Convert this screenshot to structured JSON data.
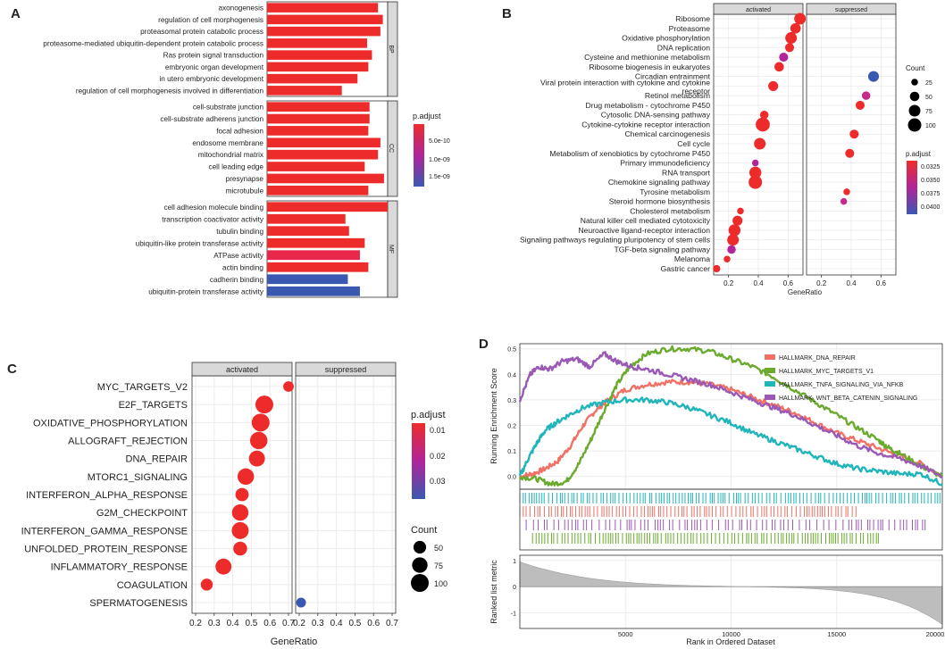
{
  "chart_data": [
    {
      "panel": "A",
      "type": "bar",
      "orientation": "horizontal",
      "xlabel": "",
      "ylabel": "",
      "groups": [
        {
          "name": "BP",
          "terms": [
            {
              "term": "axonogenesis",
              "value": 0.92,
              "color": "#ee2b2b"
            },
            {
              "term": "regulation of cell morphogenesis",
              "value": 0.96,
              "color": "#ee2b2b"
            },
            {
              "term": "proteasomal protein catabolic process",
              "value": 0.94,
              "color": "#ee2b2b"
            },
            {
              "term": "proteasome-mediated ubiquitin-dependent protein catabolic process",
              "value": 0.83,
              "color": "#ee2b2b"
            },
            {
              "term": "Ras protein signal transduction",
              "value": 0.87,
              "color": "#ee2b2b"
            },
            {
              "term": "embryonic organ development",
              "value": 0.84,
              "color": "#ee2b2b"
            },
            {
              "term": "in utero embryonic development",
              "value": 0.75,
              "color": "#ee2b2b"
            },
            {
              "term": "regulation of cell morphogenesis involved in differentiation",
              "value": 0.62,
              "color": "#ee2b2b"
            }
          ]
        },
        {
          "name": "CC",
          "terms": [
            {
              "term": "cell-substrate junction",
              "value": 0.85,
              "color": "#ee2b2b"
            },
            {
              "term": "cell-substrate adherens junction",
              "value": 0.85,
              "color": "#ee2b2b"
            },
            {
              "term": "focal adhesion",
              "value": 0.84,
              "color": "#ee2b2b"
            },
            {
              "term": "endosome membrane",
              "value": 0.94,
              "color": "#ee2b2b"
            },
            {
              "term": "mitochondrial matrix",
              "value": 0.92,
              "color": "#ee2b2b"
            },
            {
              "term": "cell leading edge",
              "value": 0.81,
              "color": "#ee2b2b"
            },
            {
              "term": "presynapse",
              "value": 0.97,
              "color": "#ee2b2b"
            },
            {
              "term": "microtubule",
              "value": 0.84,
              "color": "#ee2b2b"
            }
          ]
        },
        {
          "name": "MF",
          "terms": [
            {
              "term": "cell adhesion molecule binding",
              "value": 1.0,
              "color": "#ee2b2b"
            },
            {
              "term": "transcription coactivator activity",
              "value": 0.65,
              "color": "#ee2b2b"
            },
            {
              "term": "tubulin binding",
              "value": 0.68,
              "color": "#ee2b2b"
            },
            {
              "term": "ubiquitin-like protein transferase activity",
              "value": 0.81,
              "color": "#ee2b2b"
            },
            {
              "term": "ATPase activity",
              "value": 0.77,
              "color": "#e8274a"
            },
            {
              "term": "actin binding",
              "value": 0.84,
              "color": "#ee2b2b"
            },
            {
              "term": "cadherin binding",
              "value": 0.67,
              "color": "#3b58b0"
            },
            {
              "term": "ubiquitin-protein transferase activity",
              "value": 0.77,
              "color": "#3b58b0"
            }
          ]
        }
      ],
      "legend": {
        "title": "p.adjust",
        "labels": [
          "5.0e-10",
          "1.0e-09",
          "1.5e-09"
        ]
      }
    },
    {
      "panel": "B",
      "type": "scatter",
      "facets": [
        "activated",
        "suppressed"
      ],
      "xlabel": "GeneRatio",
      "xlim": [
        0.1,
        0.7
      ],
      "xticks": [
        0.2,
        0.4,
        0.6
      ],
      "categories": [
        "Ribosome",
        "Proteasome",
        "Oxidative phosphorylation",
        "DNA replication",
        "Cysteine and methionine metabolism",
        "Ribosome biogenesis in eukaryotes",
        "Circadian entrainment",
        "Viral protein interaction with cytokine and cytokine receptor",
        "Retinol metabolism",
        "Drug metabolism - cytochrome P450",
        "Cytosolic DNA-sensing pathway",
        "Cytokine-cytokine receptor interaction",
        "Chemical carcinogenesis",
        "Cell cycle",
        "Metabolism of xenobiotics by cytochrome P450",
        "Primary immunodeficiency",
        "RNA transport",
        "Chemokine signaling pathway",
        "Tyrosine metabolism",
        "Steroid hormone biosynthesis",
        "Cholesterol metabolism",
        "Natural killer cell mediated cytotoxicity",
        "Neuroactive ligand-receptor interaction",
        "Signaling pathways regulating pluripotency of stem cells",
        "TGF-beta signaling pathway",
        "Melanoma",
        "Gastric cancer"
      ],
      "points": [
        {
          "facet": "activated",
          "term": "Ribosome",
          "x": 0.68,
          "count": 75,
          "color": "#ee2b2b"
        },
        {
          "facet": "activated",
          "term": "Proteasome",
          "x": 0.65,
          "count": 60,
          "color": "#ee2b2b"
        },
        {
          "facet": "activated",
          "term": "Oxidative phosphorylation",
          "x": 0.62,
          "count": 75,
          "color": "#ee2b2b"
        },
        {
          "facet": "activated",
          "term": "DNA replication",
          "x": 0.61,
          "count": 45,
          "color": "#ee2b2b"
        },
        {
          "facet": "activated",
          "term": "Cysteine and methionine metabolism",
          "x": 0.57,
          "count": 45,
          "color": "#b0269a"
        },
        {
          "facet": "activated",
          "term": "Ribosome biogenesis in eukaryotes",
          "x": 0.54,
          "count": 50,
          "color": "#ee2b2b"
        },
        {
          "facet": "suppressed",
          "term": "Circadian entrainment",
          "x": 0.55,
          "count": 65,
          "color": "#3b58b0"
        },
        {
          "facet": "activated",
          "term": "Viral protein interaction with cytokine and cytokine receptor",
          "x": 0.5,
          "count": 55,
          "color": "#ee2b2b"
        },
        {
          "facet": "suppressed",
          "term": "Retinol metabolism",
          "x": 0.5,
          "count": 40,
          "color": "#c62a8c"
        },
        {
          "facet": "suppressed",
          "term": "Drug metabolism - cytochrome P450",
          "x": 0.46,
          "count": 45,
          "color": "#ee2b2b"
        },
        {
          "facet": "activated",
          "term": "Cytosolic DNA-sensing pathway",
          "x": 0.44,
          "count": 40,
          "color": "#ee2b2b"
        },
        {
          "facet": "activated",
          "term": "Cytokine-cytokine receptor interaction",
          "x": 0.43,
          "count": 110,
          "color": "#ee2b2b"
        },
        {
          "facet": "suppressed",
          "term": "Chemical carcinogenesis",
          "x": 0.42,
          "count": 45,
          "color": "#ee2b2b"
        },
        {
          "facet": "activated",
          "term": "Cell cycle",
          "x": 0.41,
          "count": 75,
          "color": "#ee2b2b"
        },
        {
          "facet": "suppressed",
          "term": "Metabolism of xenobiotics by cytochrome P450",
          "x": 0.39,
          "count": 45,
          "color": "#ee2b2b"
        },
        {
          "facet": "activated",
          "term": "Primary immunodeficiency",
          "x": 0.38,
          "count": 25,
          "color": "#b0269a"
        },
        {
          "facet": "activated",
          "term": "RNA transport",
          "x": 0.38,
          "count": 80,
          "color": "#ee2b2b"
        },
        {
          "facet": "activated",
          "term": "Chemokine signaling pathway",
          "x": 0.38,
          "count": 100,
          "color": "#ee2b2b"
        },
        {
          "facet": "suppressed",
          "term": "Tyrosine metabolism",
          "x": 0.37,
          "count": 25,
          "color": "#ee2b2b"
        },
        {
          "facet": "suppressed",
          "term": "Steroid hormone biosynthesis",
          "x": 0.35,
          "count": 25,
          "color": "#c62a8c"
        },
        {
          "facet": "activated",
          "term": "Cholesterol metabolism",
          "x": 0.28,
          "count": 25,
          "color": "#ee2b2b"
        },
        {
          "facet": "activated",
          "term": "Natural killer cell mediated cytotoxicity",
          "x": 0.26,
          "count": 55,
          "color": "#ee2b2b"
        },
        {
          "facet": "activated",
          "term": "Neuroactive ligand-receptor interaction",
          "x": 0.24,
          "count": 80,
          "color": "#ee2b2b"
        },
        {
          "facet": "activated",
          "term": "Signaling pathways regulating pluripotency of stem cells",
          "x": 0.23,
          "count": 75,
          "color": "#ee2b2b"
        },
        {
          "facet": "activated",
          "term": "TGF-beta signaling pathway",
          "x": 0.22,
          "count": 40,
          "color": "#b0269a"
        },
        {
          "facet": "activated",
          "term": "Melanoma",
          "x": 0.19,
          "count": 25,
          "color": "#ee2b2b"
        },
        {
          "facet": "activated",
          "term": "Gastric cancer",
          "x": 0.12,
          "count": 30,
          "color": "#ee2b2b"
        }
      ],
      "legend_count": {
        "title": "Count",
        "labels": [
          "25",
          "50",
          "75",
          "100"
        ],
        "values": [
          25,
          50,
          75,
          100
        ]
      },
      "legend_color": {
        "title": "p.adjust",
        "labels": [
          "0.0325",
          "0.0350",
          "0.0375",
          "0.0400"
        ]
      }
    },
    {
      "panel": "C",
      "type": "scatter",
      "facets": [
        "activated",
        "suppressed"
      ],
      "xlabel": "GeneRatio",
      "xlim": [
        0.2,
        0.7
      ],
      "xticks": [
        0.2,
        0.3,
        0.4,
        0.5,
        0.6,
        0.7
      ],
      "xtick_labels": [
        "0.2",
        "0.3",
        "0.4",
        "0.5",
        "0.6",
        "0.7"
      ],
      "categories": [
        "MYC_TARGETS_V2",
        "E2F_TARGETS",
        "OXIDATIVE_PHOSPHORYLATION",
        "ALLOGRAFT_REJECTION",
        "DNA_REPAIR",
        "MTORC1_SIGNALING",
        "INTERFERON_ALPHA_RESPONSE",
        "G2M_CHECKPOINT",
        "INTERFERON_GAMMA_RESPONSE",
        "UNFOLDED_PROTEIN_RESPONSE",
        "INFLAMMATORY_RESPONSE",
        "COAGULATION",
        "SPERMATOGENESIS"
      ],
      "points": [
        {
          "facet": "activated",
          "term": "MYC_TARGETS_V2",
          "x": 0.7,
          "count": 35,
          "color": "#ee2b2b"
        },
        {
          "facet": "activated",
          "term": "E2F_TARGETS",
          "x": 0.57,
          "count": 100,
          "color": "#ee2b2b"
        },
        {
          "facet": "activated",
          "term": "OXIDATIVE_PHOSPHORYLATION",
          "x": 0.55,
          "count": 100,
          "color": "#ee2b2b"
        },
        {
          "facet": "activated",
          "term": "ALLOGRAFT_REJECTION",
          "x": 0.54,
          "count": 95,
          "color": "#ee2b2b"
        },
        {
          "facet": "activated",
          "term": "DNA_REPAIR",
          "x": 0.53,
          "count": 80,
          "color": "#ee2b2b"
        },
        {
          "facet": "activated",
          "term": "MTORC1_SIGNALING",
          "x": 0.47,
          "count": 85,
          "color": "#ee2b2b"
        },
        {
          "facet": "activated",
          "term": "INTERFERON_ALPHA_RESPONSE",
          "x": 0.45,
          "count": 55,
          "color": "#ee2b2b"
        },
        {
          "facet": "activated",
          "term": "G2M_CHECKPOINT",
          "x": 0.44,
          "count": 85,
          "color": "#ee2b2b"
        },
        {
          "facet": "activated",
          "term": "INTERFERON_GAMMA_RESPONSE",
          "x": 0.44,
          "count": 90,
          "color": "#ee2b2b"
        },
        {
          "facet": "activated",
          "term": "UNFOLDED_PROTEIN_RESPONSE",
          "x": 0.44,
          "count": 60,
          "color": "#ee2b2b"
        },
        {
          "facet": "activated",
          "term": "INFLAMMATORY_RESPONSE",
          "x": 0.35,
          "count": 80,
          "color": "#ee2b2b"
        },
        {
          "facet": "activated",
          "term": "COAGULATION",
          "x": 0.26,
          "count": 45,
          "color": "#ee2b2b"
        },
        {
          "facet": "suppressed",
          "term": "SPERMATOGENESIS",
          "x": 0.21,
          "count": 30,
          "color": "#3b58b0"
        }
      ],
      "legend_color": {
        "title": "p.adjust",
        "labels": [
          "0.01",
          "0.02",
          "0.03"
        ]
      },
      "legend_count": {
        "title": "Count",
        "labels": [
          "50",
          "75",
          "100"
        ],
        "values": [
          50,
          75,
          100
        ]
      }
    },
    {
      "panel": "D",
      "type": "line",
      "title": "",
      "xlabel": "Rank in Ordered Dataset",
      "ylabel": "Running Enrichment Score",
      "ylabel2": "Ranked list metric",
      "xlim": [
        0,
        20000
      ],
      "ylim": [
        -0.05,
        0.52
      ],
      "xticks": [
        5000,
        10000,
        15000,
        20000
      ],
      "yticks": [
        0.0,
        0.1,
        0.2,
        0.3,
        0.4,
        0.5
      ],
      "metric_ylim": [
        -1.6,
        1.2
      ],
      "metric_yticks": [
        1,
        0,
        -1
      ],
      "series": [
        {
          "name": "HALLMARK_DNA_REPAIR",
          "color": "#f07165",
          "x": [
            0,
            600,
            1200,
            1800,
            2400,
            3000,
            3600,
            4200,
            5000,
            6000,
            7000,
            8000,
            9000,
            10000,
            11000,
            12000,
            13000,
            14000,
            15000,
            16000,
            17000,
            18000,
            19000,
            20000
          ],
          "y": [
            0.0,
            0.01,
            0.03,
            0.06,
            0.12,
            0.2,
            0.26,
            0.3,
            0.34,
            0.36,
            0.37,
            0.37,
            0.36,
            0.34,
            0.31,
            0.28,
            0.25,
            0.21,
            0.17,
            0.14,
            0.11,
            0.08,
            0.05,
            0.0
          ]
        },
        {
          "name": "HALLMARK_MYC_TARGETS_V1",
          "color": "#6aaa2c",
          "x": [
            0,
            800,
            1500,
            2200,
            2800,
            3400,
            4000,
            4600,
            5200,
            6000,
            7000,
            8000,
            9000,
            10000,
            11000,
            12000,
            13000,
            14000,
            15000,
            16000,
            17000,
            17500,
            18000,
            19000,
            20000
          ],
          "y": [
            0.0,
            -0.01,
            -0.03,
            -0.02,
            0.05,
            0.15,
            0.26,
            0.36,
            0.43,
            0.48,
            0.5,
            0.5,
            0.49,
            0.46,
            0.43,
            0.39,
            0.34,
            0.29,
            0.24,
            0.19,
            0.14,
            0.11,
            0.09,
            0.04,
            0.0
          ]
        },
        {
          "name": "HALLMARK_TNFA_SIGNALING_VIA_NFKB",
          "color": "#20b5bb",
          "x": [
            0,
            400,
            800,
            1200,
            1700,
            2300,
            3000,
            4000,
            5000,
            6000,
            7000,
            8000,
            9000,
            10000,
            11000,
            12000,
            13000,
            14000,
            15000,
            16000,
            17000,
            18000,
            19000,
            20000
          ],
          "y": [
            0.0,
            0.07,
            0.13,
            0.18,
            0.21,
            0.24,
            0.27,
            0.29,
            0.3,
            0.3,
            0.29,
            0.27,
            0.24,
            0.21,
            0.17,
            0.14,
            0.11,
            0.08,
            0.05,
            0.03,
            0.02,
            0.01,
            0.01,
            -0.03
          ]
        },
        {
          "name": "HALLMARK_WNT_BETA_CATENIN_SIGNALING",
          "color": "#9b59b6",
          "x": [
            0,
            500,
            900,
            1400,
            2000,
            2700,
            3300,
            4000,
            4600,
            5300,
            6000,
            7000,
            8000,
            9000,
            10000,
            11000,
            12000,
            13000,
            14000,
            15000,
            16000,
            17000,
            18000,
            19000,
            20000
          ],
          "y": [
            0.3,
            0.4,
            0.43,
            0.42,
            0.45,
            0.46,
            0.43,
            0.48,
            0.45,
            0.43,
            0.42,
            0.4,
            0.38,
            0.36,
            0.33,
            0.3,
            0.27,
            0.24,
            0.2,
            0.16,
            0.12,
            0.09,
            0.07,
            0.04,
            0.0
          ]
        }
      ],
      "hit_rows": [
        {
          "name": "HALLMARK_TNFA_SIGNALING_VIA_NFKB",
          "color": "#20b5bb",
          "start": 0,
          "end": 20000,
          "density": 2
        },
        {
          "name": "HALLMARK_DNA_REPAIR",
          "color": "#f07165",
          "start": 0,
          "end": 16000,
          "density": 2
        },
        {
          "name": "HALLMARK_WNT_BETA_CATENIN_SIGNALING",
          "color": "#9b59b6",
          "start": 300,
          "end": 19200,
          "density": 1
        },
        {
          "name": "HALLMARK_MYC_TARGETS_V1",
          "color": "#6aaa2c",
          "start": 600,
          "end": 17000,
          "density": 2
        }
      ]
    }
  ],
  "panel_labels": {
    "a": "A",
    "b": "B",
    "c": "C",
    "d": "D"
  },
  "strip_labels": {
    "a_bp": "BP",
    "a_cc": "CC",
    "a_mf": "MF",
    "activated": "activated",
    "suppressed": "suppressed"
  },
  "colors": {
    "high": "#ee2b2b",
    "mid": "#b0269a",
    "low": "#3b58b0",
    "grid": "#ebebeb",
    "strip": "#d9d9d9",
    "panel_bg": "#ffffff",
    "border": "#333333"
  }
}
